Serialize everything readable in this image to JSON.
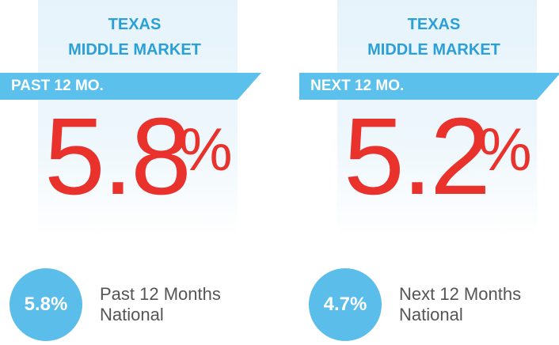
{
  "panels": [
    {
      "title": [
        "TEXAS",
        "MIDDLE MARKET"
      ],
      "period": "PAST 12 MO.",
      "value": "5.8",
      "unit": "%",
      "national": "5.8%",
      "caption": [
        "Past 12 Months",
        "National"
      ]
    },
    {
      "title": [
        "TEXAS",
        "MIDDLE MARKET"
      ],
      "period": "NEXT 12 MO.",
      "value": "5.2",
      "unit": "%",
      "national": "4.7%",
      "caption": [
        "Next 12 Months",
        "National"
      ]
    }
  ]
}
